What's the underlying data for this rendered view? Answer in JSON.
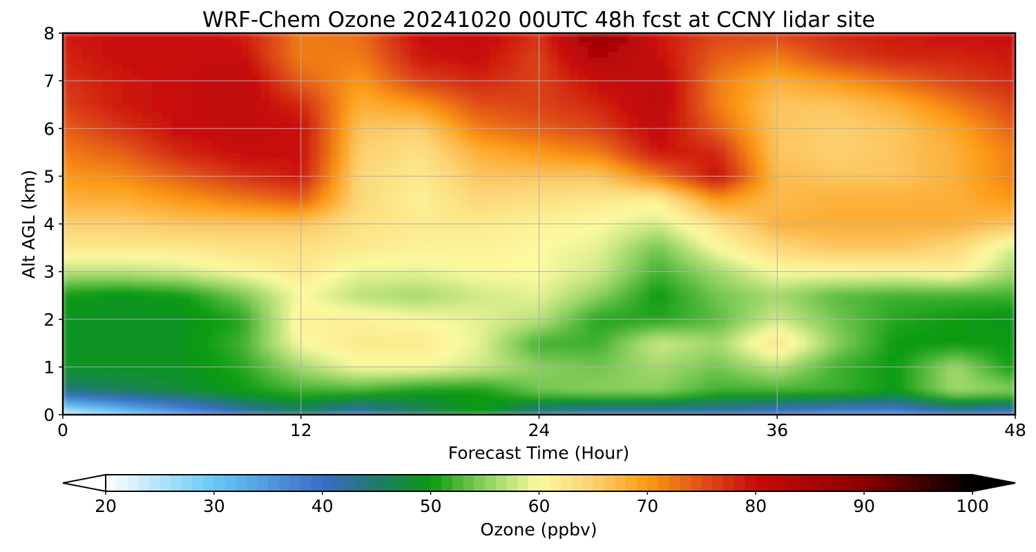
{
  "chart_data": {
    "type": "heatmap",
    "title": "WRF-Chem Ozone  20241020 00UTC 48h fcst at CCNY lidar site",
    "xlabel": "Forecast Time (Hour)",
    "ylabel": "Alt AGL (km)",
    "xlim": [
      0,
      48
    ],
    "ylim": [
      0,
      8
    ],
    "grid": true,
    "x_ticks": [
      "0",
      "12",
      "24",
      "36",
      "48"
    ],
    "y_ticks": [
      "0",
      "1",
      "2",
      "3",
      "4",
      "5",
      "6",
      "7",
      "8"
    ],
    "x": [
      0,
      3,
      6,
      9,
      12,
      15,
      18,
      21,
      24,
      27,
      30,
      33,
      36,
      39,
      42,
      45,
      48
    ],
    "y": [
      0,
      0.5,
      1,
      1.5,
      2,
      2.5,
      3,
      3.5,
      4,
      4.5,
      5,
      5.5,
      6,
      6.5,
      7,
      7.5,
      8
    ],
    "values": [
      [
        22,
        28,
        34,
        40,
        44,
        40,
        45,
        50,
        42,
        40,
        40,
        40,
        38,
        36,
        36,
        40,
        38
      ],
      [
        44,
        46,
        48,
        50,
        52,
        52,
        50,
        50,
        54,
        55,
        55,
        52,
        52,
        52,
        50,
        56,
        55
      ],
      [
        49,
        49,
        49,
        51,
        56,
        60,
        60,
        58,
        55,
        54,
        56,
        54,
        57,
        52,
        50,
        56,
        50
      ],
      [
        49,
        49,
        49,
        52,
        60,
        62,
        62,
        59,
        52,
        52,
        58,
        56,
        63,
        55,
        50,
        50,
        50
      ],
      [
        49,
        49,
        49,
        51,
        61,
        61,
        60,
        59,
        57,
        51,
        51,
        53,
        58,
        54,
        51,
        50,
        49
      ],
      [
        50,
        49,
        50,
        54,
        60,
        57,
        56,
        58,
        59,
        55,
        50,
        54,
        56,
        53,
        52,
        52,
        52
      ],
      [
        57,
        57,
        58,
        60,
        62,
        59,
        59,
        60,
        60,
        58,
        52,
        56,
        60,
        60,
        60,
        61,
        56
      ],
      [
        62,
        62,
        62,
        63,
        63,
        62,
        61,
        61,
        60,
        59,
        54,
        60,
        64,
        66,
        66,
        64,
        58
      ],
      [
        65,
        65,
        66,
        66,
        66,
        63,
        62,
        62,
        61,
        60,
        58,
        63,
        68,
        68,
        68,
        68,
        66
      ],
      [
        68,
        68,
        70,
        72,
        74,
        64,
        61,
        64,
        63,
        62,
        61,
        70,
        67,
        68,
        68,
        68,
        70
      ],
      [
        70,
        71,
        74,
        77,
        79,
        64,
        62,
        66,
        66,
        66,
        72,
        80,
        67,
        66,
        66,
        68,
        72
      ],
      [
        72,
        74,
        78,
        80,
        80,
        65,
        63,
        68,
        70,
        72,
        79,
        78,
        66,
        65,
        66,
        68,
        72
      ],
      [
        74,
        77,
        80,
        81,
        80,
        66,
        65,
        72,
        74,
        76,
        81,
        74,
        66,
        65,
        66,
        69,
        74
      ],
      [
        76,
        79,
        80,
        81,
        78,
        68,
        70,
        75,
        76,
        78,
        82,
        72,
        66,
        66,
        68,
        72,
        76
      ],
      [
        77,
        79,
        80,
        82,
        74,
        70,
        76,
        78,
        76,
        80,
        82,
        72,
        68,
        70,
        73,
        76,
        78
      ],
      [
        78,
        80,
        80,
        80,
        72,
        72,
        79,
        80,
        76,
        84,
        80,
        74,
        72,
        76,
        78,
        78,
        79
      ],
      [
        79,
        80,
        80,
        79,
        72,
        73,
        80,
        81,
        77,
        88,
        79,
        76,
        76,
        78,
        79,
        80,
        80
      ]
    ],
    "colorbar": {
      "label": "Ozone  (ppbv)",
      "min": 20,
      "max": 100,
      "ticks": [
        "20",
        "30",
        "40",
        "50",
        "60",
        "70",
        "80",
        "90",
        "100"
      ],
      "extend": "both",
      "colors": {
        "v20": "#ffffff",
        "v30": "#66c8f5",
        "v40": "#3a6cc8",
        "v45": "#1f7a6c",
        "v50": "#0a9a10",
        "v55": "#8cd060",
        "v60": "#fcfaa0",
        "v65": "#fcd070",
        "v70": "#fc9a14",
        "v75": "#e0501a",
        "v80": "#c80a0a",
        "v90": "#8a0000",
        "v100": "#000000"
      }
    }
  }
}
